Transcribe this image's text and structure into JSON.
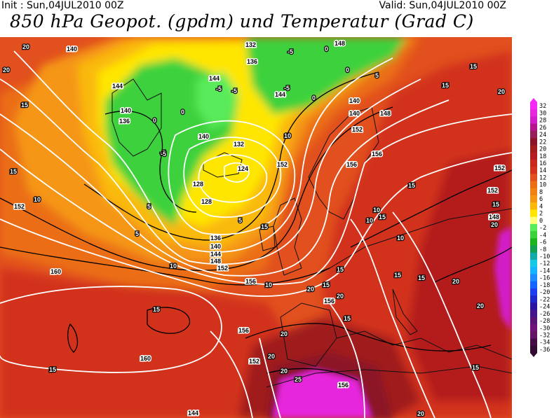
{
  "header": {
    "init": "Init : Sun,04JUL2010 00Z",
    "valid": "Valid: Sun,04JUL2010 00Z",
    "title": "850 hPa Geopot. (gpdm) und Temperatur (Grad C)"
  },
  "colors": {
    "deep_red": "#b41e1e",
    "red": "#d2321e",
    "red_orange": "#e1501e",
    "orange": "#eb6e14",
    "light_orange": "#f59614",
    "yellow_orange": "#fab90a",
    "yellow": "#ffe600",
    "green": "#3cd23c",
    "light_green": "#5aeb5a",
    "magenta": "#e628dc"
  },
  "scale": {
    "values": [
      "32",
      "30",
      "28",
      "26",
      "24",
      "22",
      "20",
      "18",
      "16",
      "14",
      "12",
      "10",
      "8",
      "6",
      "4",
      "2",
      "0",
      "-2",
      "-4",
      "-6",
      "-8",
      "-10",
      "-12",
      "-14",
      "-16",
      "-18",
      "-20",
      "-22",
      "-24",
      "-26",
      "-28",
      "-30",
      "-32",
      "-34",
      "-36"
    ],
    "colors": [
      "#f528f5",
      "#e628dc",
      "#d21ec8",
      "#b4148c",
      "#961e5a",
      "#8c1428",
      "#a01e1e",
      "#b41e1e",
      "#c8281e",
      "#d2321e",
      "#e1501e",
      "#eb6e14",
      "#f08214",
      "#f59614",
      "#fab90a",
      "#ffe600",
      "#ffff7d",
      "#5aeb5a",
      "#3cd23c",
      "#1eb41e",
      "#14a050",
      "#14aaaa",
      "#14c8e6",
      "#14b4ff",
      "#1e8cff",
      "#1464ff",
      "#1e3cf0",
      "#1e28c8",
      "#2814a0",
      "#46148c",
      "#5a1478",
      "#6e1478",
      "#641464",
      "#460a46",
      "#320a32"
    ]
  },
  "labels": {
    "geopotential_white": [
      "140",
      "144",
      "140",
      "136",
      "140",
      "144",
      "128",
      "128",
      "132",
      "124",
      "132",
      "136",
      "140",
      "144",
      "148",
      "152",
      "156",
      "160",
      "160",
      "156",
      "152",
      "136",
      "144",
      "140",
      "148",
      "148",
      "152",
      "156",
      "152",
      "152",
      "148",
      "140",
      "156",
      "156",
      "152",
      "152",
      "156",
      "144"
    ],
    "temperature_black": [
      "20",
      "20",
      "15",
      "15",
      "10",
      "5",
      "0",
      "-5",
      "-5",
      "0",
      "5",
      "10",
      "-5",
      "0",
      "5",
      "10",
      "15",
      "15",
      "20",
      "15",
      "10",
      "5",
      "15",
      "20",
      "25",
      "20",
      "15",
      "20",
      "15",
      "20",
      "10",
      "15",
      "15",
      "15",
      "15",
      "20",
      "15",
      "10",
      "15",
      "20",
      "20",
      "20",
      "15",
      "10",
      "15",
      "20",
      "-5",
      "0",
      "-5",
      "-5",
      "0"
    ]
  }
}
